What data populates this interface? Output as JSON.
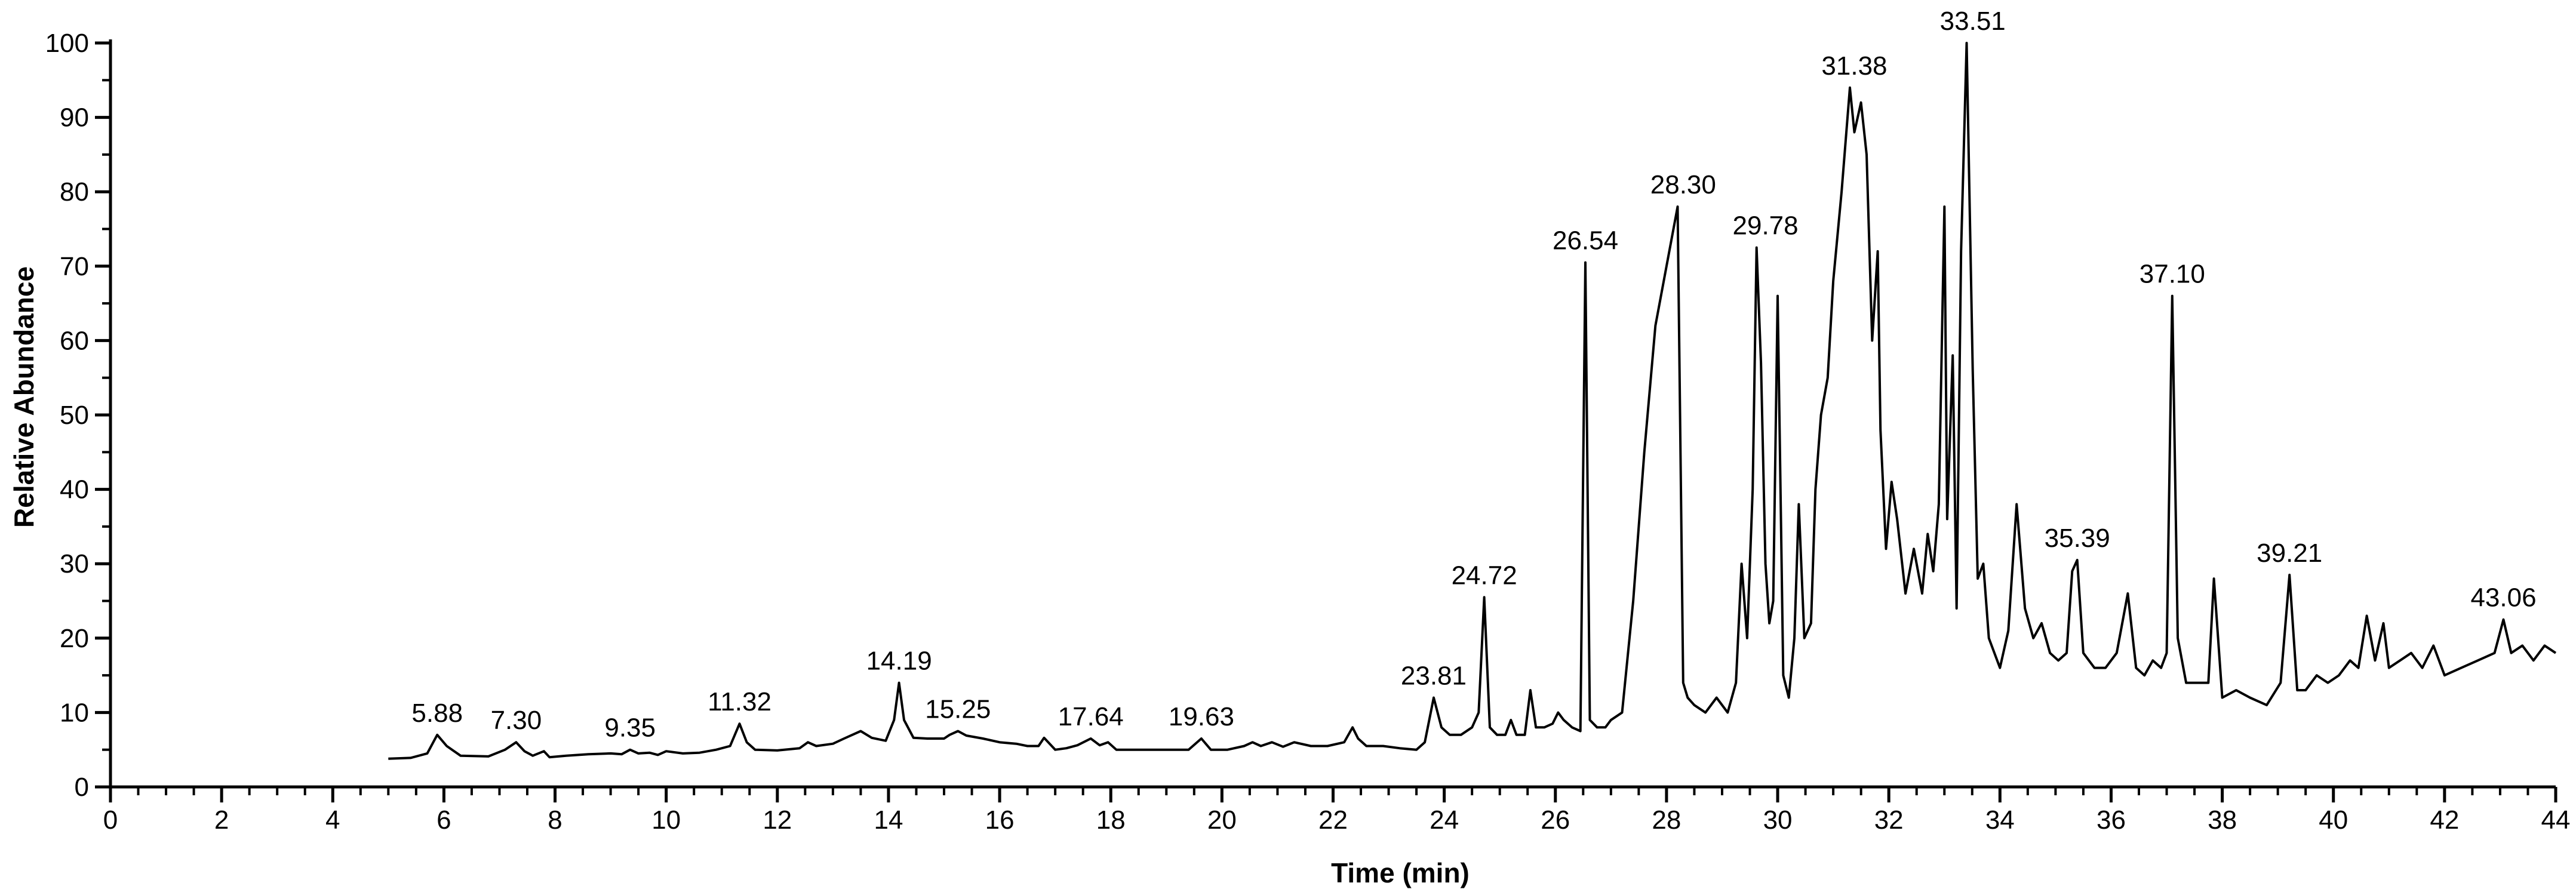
{
  "chart_data": {
    "type": "line",
    "title": "",
    "xlabel": "Time (min)",
    "ylabel": "Relative Abundance",
    "xlim": [
      0,
      44
    ],
    "ylim": [
      0,
      100
    ],
    "x_ticks": [
      "0",
      "2",
      "4",
      "6",
      "8",
      "10",
      "12",
      "14",
      "16",
      "18",
      "20",
      "22",
      "24",
      "26",
      "28",
      "30",
      "32",
      "34",
      "36",
      "38",
      "40",
      "42",
      "44"
    ],
    "y_ticks": [
      "0",
      "10",
      "20",
      "30",
      "40",
      "50",
      "60",
      "70",
      "80",
      "90",
      "100"
    ],
    "grid": false,
    "legend": "none",
    "line_color": "#000000",
    "peak_labels": [
      {
        "x": 5.88,
        "y": 7,
        "label": "5.88"
      },
      {
        "x": 7.3,
        "y": 6,
        "label": "7.30"
      },
      {
        "x": 9.35,
        "y": 5,
        "label": "9.35"
      },
      {
        "x": 11.32,
        "y": 8.5,
        "label": "11.32"
      },
      {
        "x": 14.19,
        "y": 14,
        "label": "14.19"
      },
      {
        "x": 15.25,
        "y": 7.5,
        "label": "15.25"
      },
      {
        "x": 17.64,
        "y": 6.5,
        "label": "17.64"
      },
      {
        "x": 19.63,
        "y": 6.5,
        "label": "19.63"
      },
      {
        "x": 23.81,
        "y": 12,
        "label": "23.81"
      },
      {
        "x": 24.72,
        "y": 25.5,
        "label": "24.72"
      },
      {
        "x": 26.54,
        "y": 70.5,
        "label": "26.54"
      },
      {
        "x": 28.3,
        "y": 78,
        "label": "28.30"
      },
      {
        "x": 29.78,
        "y": 72.5,
        "label": "29.78"
      },
      {
        "x": 31.38,
        "y": 94,
        "label": "31.38"
      },
      {
        "x": 33.51,
        "y": 100,
        "label": "33.51"
      },
      {
        "x": 35.39,
        "y": 30.5,
        "label": "35.39"
      },
      {
        "x": 37.1,
        "y": 66,
        "label": "37.10"
      },
      {
        "x": 39.21,
        "y": 28.5,
        "label": "39.21"
      },
      {
        "x": 43.06,
        "y": 22.5,
        "label": "43.06"
      }
    ],
    "series": [
      {
        "x": [
          5.0,
          5.4,
          5.7,
          5.88,
          6.05,
          6.3,
          6.8,
          7.1,
          7.3,
          7.45,
          7.6,
          7.8,
          7.9,
          8.2,
          8.6,
          9.0,
          9.2,
          9.35,
          9.5,
          9.7,
          9.85,
          10.0,
          10.3,
          10.6,
          10.9,
          11.15,
          11.32,
          11.45,
          11.6,
          12.0,
          12.4,
          12.55,
          12.7,
          13.0,
          13.2,
          13.5,
          13.7,
          13.95,
          14.1,
          14.19,
          14.28,
          14.45,
          14.7,
          15.0,
          15.1,
          15.25,
          15.4,
          15.7,
          16.0,
          16.3,
          16.5,
          16.7,
          16.8,
          17.0,
          17.2,
          17.4,
          17.64,
          17.8,
          17.95,
          18.1,
          18.4,
          18.8,
          19.1,
          19.4,
          19.63,
          19.8,
          20.1,
          20.4,
          20.55,
          20.7,
          20.9,
          21.1,
          21.3,
          21.6,
          21.9,
          22.2,
          22.35,
          22.45,
          22.6,
          22.9,
          23.2,
          23.5,
          23.65,
          23.81,
          23.95,
          24.1,
          24.3,
          24.5,
          24.62,
          24.72,
          24.82,
          24.95,
          25.1,
          25.2,
          25.3,
          25.45,
          25.55,
          25.65,
          25.8,
          25.95,
          26.05,
          26.15,
          26.3,
          26.45,
          26.54,
          26.62,
          26.75,
          26.9,
          27.0,
          27.2,
          27.4,
          27.6,
          27.8,
          28.0,
          28.2,
          28.3,
          28.38,
          28.5,
          28.7,
          28.9,
          29.1,
          29.25,
          29.35,
          29.45,
          29.55,
          29.62,
          29.7,
          29.78,
          29.85,
          29.92,
          30.0,
          30.1,
          30.2,
          30.3,
          30.38,
          30.48,
          30.6,
          30.68,
          30.78,
          30.9,
          31.0,
          31.15,
          31.3,
          31.38,
          31.5,
          31.6,
          31.7,
          31.8,
          31.85,
          31.95,
          32.05,
          32.15,
          32.3,
          32.45,
          32.6,
          32.7,
          32.8,
          32.9,
          33.0,
          33.05,
          33.15,
          33.22,
          33.3,
          33.4,
          33.51,
          33.6,
          33.7,
          33.8,
          33.9,
          34.0,
          34.15,
          34.3,
          34.45,
          34.6,
          34.75,
          34.9,
          35.05,
          35.2,
          35.3,
          35.39,
          35.5,
          35.7,
          35.9,
          36.1,
          36.3,
          36.45,
          36.6,
          36.75,
          36.9,
          37.0,
          37.1,
          37.2,
          37.35,
          37.55,
          37.75,
          37.85,
          38.0,
          38.25,
          38.5,
          38.8,
          39.05,
          39.21,
          39.35,
          39.5,
          39.7,
          39.9,
          40.1,
          40.3,
          40.45,
          40.6,
          40.75,
          40.9,
          41.0,
          41.2,
          41.4,
          41.6,
          41.8,
          42.0,
          42.3,
          42.6,
          42.9,
          43.06,
          43.2,
          43.4,
          43.6,
          43.8,
          44.0
        ],
        "y": [
          3.8,
          3.9,
          4.5,
          7,
          5.5,
          4.2,
          4.1,
          5,
          6,
          4.8,
          4.2,
          4.8,
          4,
          4.2,
          4.4,
          4.5,
          4.4,
          5,
          4.5,
          4.6,
          4.3,
          4.8,
          4.5,
          4.6,
          5,
          5.5,
          8.5,
          6,
          5,
          4.9,
          5.2,
          6,
          5.5,
          5.8,
          6.5,
          7.5,
          6.6,
          6.2,
          9,
          14,
          9,
          6.6,
          6.5,
          6.5,
          7,
          7.5,
          6.9,
          6.5,
          6,
          5.8,
          5.5,
          5.5,
          6.6,
          5,
          5.2,
          5.6,
          6.5,
          5.6,
          6,
          5,
          5,
          5,
          5,
          5,
          6.5,
          5,
          5,
          5.5,
          6,
          5.5,
          6,
          5.4,
          6,
          5.5,
          5.5,
          6,
          8,
          6.5,
          5.5,
          5.5,
          5.2,
          5,
          6,
          12,
          8,
          7,
          7,
          8,
          10,
          25.5,
          8,
          7,
          7,
          9,
          7,
          7,
          13,
          8,
          8,
          8.5,
          10,
          9,
          8,
          7.5,
          70.5,
          9,
          8,
          8,
          9,
          10,
          25,
          45,
          62,
          70,
          78,
          14,
          12,
          11,
          10,
          12,
          10,
          14,
          30,
          20,
          40,
          72.5,
          57,
          30,
          22,
          25,
          66,
          15,
          12,
          20,
          38,
          20,
          22,
          40,
          50,
          55,
          68,
          80,
          94,
          88,
          92,
          85,
          60,
          72,
          48,
          32,
          41,
          36,
          26,
          32,
          26,
          34,
          29,
          38,
          78,
          36,
          58,
          24,
          72,
          100,
          56,
          28,
          30,
          20,
          18,
          16,
          21,
          38,
          24,
          20,
          22,
          18,
          17,
          18,
          29,
          30.5,
          18,
          16,
          16,
          18,
          26,
          16,
          15,
          17,
          16,
          18,
          66,
          20,
          14,
          14,
          14,
          28,
          12,
          13,
          12,
          11,
          14,
          28.5,
          13,
          13,
          15,
          14,
          15,
          17,
          16,
          23,
          17,
          22,
          16,
          17,
          18,
          16,
          19,
          15,
          16,
          17,
          18,
          22.5,
          18,
          19,
          17,
          19,
          18
        ]
      }
    ]
  }
}
